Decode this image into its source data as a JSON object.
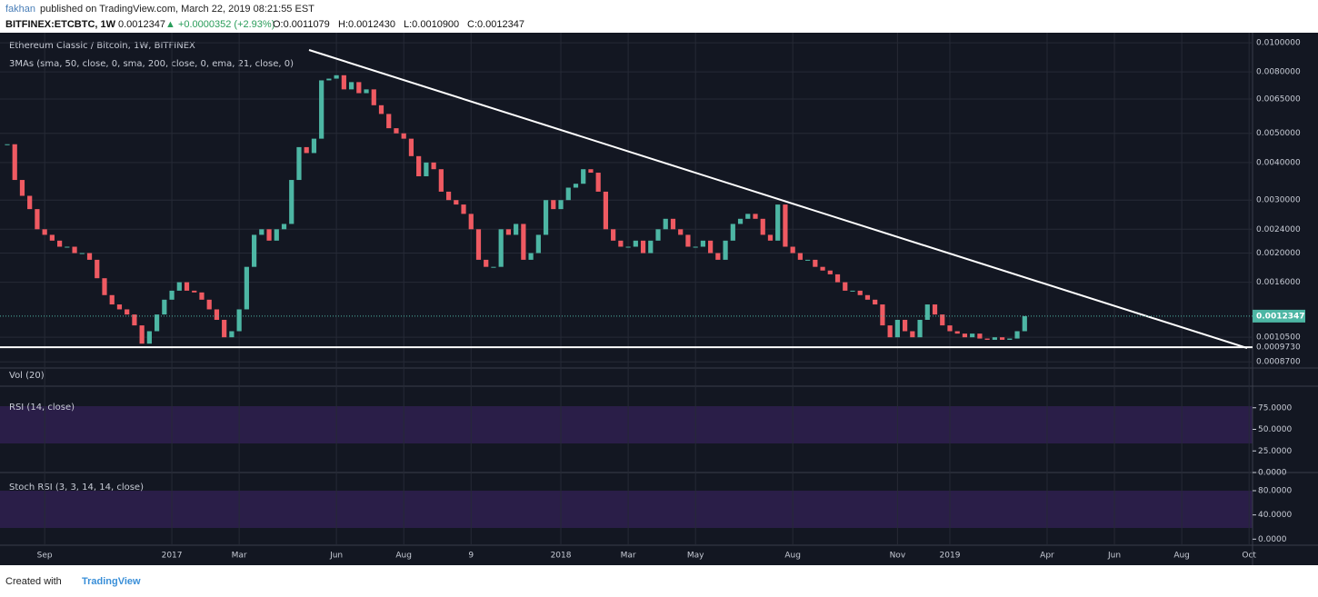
{
  "chart_data": {
    "type": "candlestick",
    "header": {
      "publisher": "fakhan",
      "published": "published on TradingView.com, March 22, 2019 08:21:55 EST",
      "symbol": "BITFINEX:ETCBTC, 1W",
      "last": "0.0012347",
      "change": "▲ +0.0000352 (+2.93%)",
      "ohlc": [
        "O:0.0011079",
        "H:0.0012430",
        "L:0.0010900",
        "C:0.0012347"
      ]
    },
    "title": "Ethereum Classic / Bitcoin, 1W, BITFINEX",
    "study": "3MAs (sma, 50, close, 0, sma, 200, close, 0, ema, 21, close, 0)",
    "log_scale": true,
    "grid": true,
    "up_color": "#4db6a4",
    "down_color": "#ef5a62",
    "ylim": [
      0.00083,
      0.0108
    ],
    "yticks": [
      {
        "value": 0.01,
        "label": "0.0100000"
      },
      {
        "value": 0.008,
        "label": "0.0080000"
      },
      {
        "value": 0.0065,
        "label": "0.0065000"
      },
      {
        "value": 0.005,
        "label": "0.0050000"
      },
      {
        "value": 0.004,
        "label": "0.0040000"
      },
      {
        "value": 0.003,
        "label": "0.0030000"
      },
      {
        "value": 0.0024,
        "label": "0.0024000"
      },
      {
        "value": 0.002,
        "label": "0.0020000"
      },
      {
        "value": 0.0016,
        "label": "0.0016000"
      },
      {
        "value": 0.00105,
        "label": "0.0010500"
      },
      {
        "value": 0.000973,
        "label": "0.0009730"
      },
      {
        "value": 0.00087,
        "label": "0.0008700"
      }
    ],
    "categories": [
      null,
      null,
      null,
      null,
      null,
      "Sep",
      null,
      null,
      null,
      null,
      null,
      null,
      null,
      null,
      null,
      null,
      null,
      null,
      null,
      null,
      null,
      null,
      "2017",
      null,
      null,
      null,
      null,
      null,
      null,
      null,
      null,
      "Mar",
      null,
      null,
      null,
      null,
      null,
      null,
      null,
      null,
      null,
      null,
      null,
      null,
      "Jun",
      null,
      null,
      null,
      null,
      null,
      null,
      null,
      null,
      "Aug",
      null,
      null,
      null,
      null,
      null,
      null,
      null,
      null,
      "9",
      null,
      null,
      null,
      null,
      null,
      null,
      null,
      null,
      null,
      null,
      null,
      "2018",
      null,
      null,
      null,
      null,
      null,
      null,
      null,
      null,
      "Mar",
      null,
      null,
      null,
      null,
      null,
      null,
      null,
      null,
      "May",
      null,
      null,
      null,
      null,
      null,
      null,
      null,
      null,
      null,
      null,
      null,
      null,
      "Aug",
      null,
      null,
      null,
      null,
      null,
      null,
      null,
      null,
      null,
      null,
      null,
      null,
      null,
      "Nov",
      null,
      null,
      null,
      null,
      null,
      null,
      "2019",
      null,
      null,
      null,
      null,
      null,
      null,
      null,
      null,
      null,
      null,
      null,
      null,
      "Apr",
      null,
      null,
      null,
      null,
      null,
      null,
      null,
      null,
      "Jun",
      null,
      null,
      null,
      null,
      null,
      null,
      null,
      null,
      "Aug",
      null,
      null,
      null,
      null,
      null,
      null,
      null,
      null,
      "Oct",
      null
    ],
    "values": [
      0.0046,
      0.0035,
      0.0031,
      0.0028,
      0.0024,
      0.0023,
      0.0022,
      0.0021,
      0.0021,
      0.002,
      0.002,
      0.0019,
      0.00165,
      0.00145,
      0.00135,
      0.0013,
      0.00125,
      0.00115,
      0.001,
      0.0011,
      0.00125,
      0.0014,
      0.0015,
      0.0016,
      0.0015,
      0.00148,
      0.0014,
      0.0013,
      0.0012,
      0.00105,
      0.0011,
      0.0013,
      0.0018,
      0.0023,
      0.0024,
      0.0022,
      0.0024,
      0.0025,
      0.0035,
      0.0045,
      0.0043,
      0.0048,
      0.0075,
      0.0076,
      0.0078,
      0.007,
      0.0074,
      0.0068,
      0.007,
      0.0062,
      0.0058,
      0.0052,
      0.005,
      0.0048,
      0.0042,
      0.0036,
      0.004,
      0.0038,
      0.0032,
      0.003,
      0.0029,
      0.0027,
      0.0024,
      0.0019,
      0.0018,
      0.0018,
      0.0024,
      0.0023,
      0.0025,
      0.0019,
      0.002,
      0.0023,
      0.003,
      0.0028,
      0.003,
      0.0033,
      0.0034,
      0.0038,
      0.0037,
      0.0032,
      0.0024,
      0.0022,
      0.0021,
      0.0021,
      0.0022,
      0.002,
      0.0022,
      0.0024,
      0.0026,
      0.0024,
      0.0023,
      0.0021,
      0.0021,
      0.0022,
      0.002,
      0.0019,
      0.0022,
      0.0025,
      0.0026,
      0.0027,
      0.0026,
      0.0023,
      0.0022,
      0.0029,
      0.0021,
      0.002,
      0.0019,
      0.0019,
      0.0018,
      0.00175,
      0.0017,
      0.0016,
      0.0015,
      0.0015,
      0.00145,
      0.0014,
      0.00135,
      0.00115,
      0.00105,
      0.0012,
      0.0011,
      0.00105,
      0.0012,
      0.00135,
      0.00125,
      0.00115,
      0.0011,
      0.00108,
      0.00105,
      0.00108,
      0.00104,
      0.00103,
      0.00105,
      0.00103,
      0.00104,
      0.0011,
      0.0012347,
      null,
      null,
      null,
      null,
      null,
      null,
      null,
      null,
      null,
      null,
      null,
      null,
      null,
      null,
      null,
      null,
      null,
      null,
      null,
      null,
      null,
      null,
      null,
      null,
      null,
      null,
      null,
      null,
      null,
      null,
      null
    ],
    "indicators": [
      {
        "title": "Vol (20)"
      },
      {
        "title": "RSI (14, close)",
        "ylim": [
          0,
          100
        ],
        "yticks": [
          {
            "value": 75,
            "label": "75.0000"
          },
          {
            "value": 50,
            "label": "50.0000"
          },
          {
            "value": 25,
            "label": "25.0000"
          },
          {
            "value": 0,
            "label": "0.0000"
          }
        ]
      },
      {
        "title": "Stoch RSI (3, 3, 14, 14, close)",
        "ylim": [
          -10,
          110
        ],
        "yticks": [
          {
            "value": 80,
            "label": "80.0000"
          },
          {
            "value": 40,
            "label": "40.0000"
          },
          {
            "value": 0,
            "label": "0.0000"
          }
        ]
      }
    ],
    "footer": "Created with",
    "brand": "TradingView"
  }
}
